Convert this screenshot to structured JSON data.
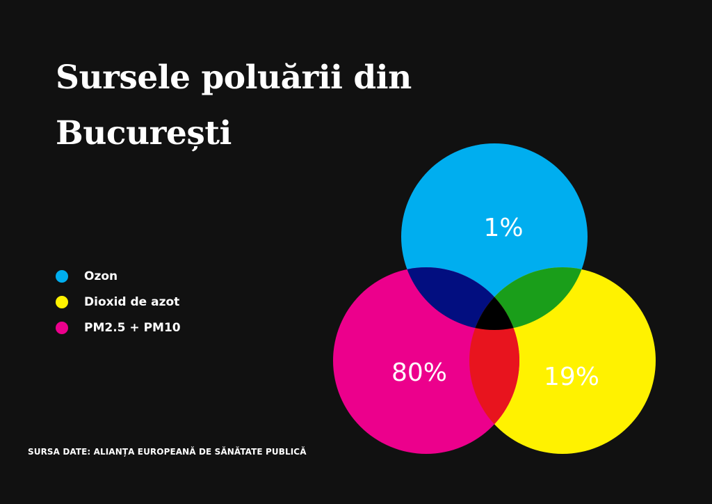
{
  "title": "Sursele poluării din București",
  "source": "SURSA DATE: ALIANȚA EUROPEANĂ DE SĂNĂTATE PUBLICĂ",
  "chart_data": {
    "type": "venn",
    "title": "Sursele poluării din București",
    "series": [
      {
        "name": "Ozon",
        "value": 1,
        "label": "1%",
        "color": "#00AEEF"
      },
      {
        "name": "Dioxid de azot",
        "value": 19,
        "label": "19%",
        "color": "#FFF200"
      },
      {
        "name": "PM2.5 + PM10",
        "value": 80,
        "label": "80%",
        "color": "#EC008C"
      }
    ],
    "overlap_colors": {
      "ozon_pm": "#020E80",
      "ozon_no2": "#1A9E1A",
      "no2_pm": "#E8141E",
      "all": "#000000"
    },
    "legend_position": "left"
  }
}
